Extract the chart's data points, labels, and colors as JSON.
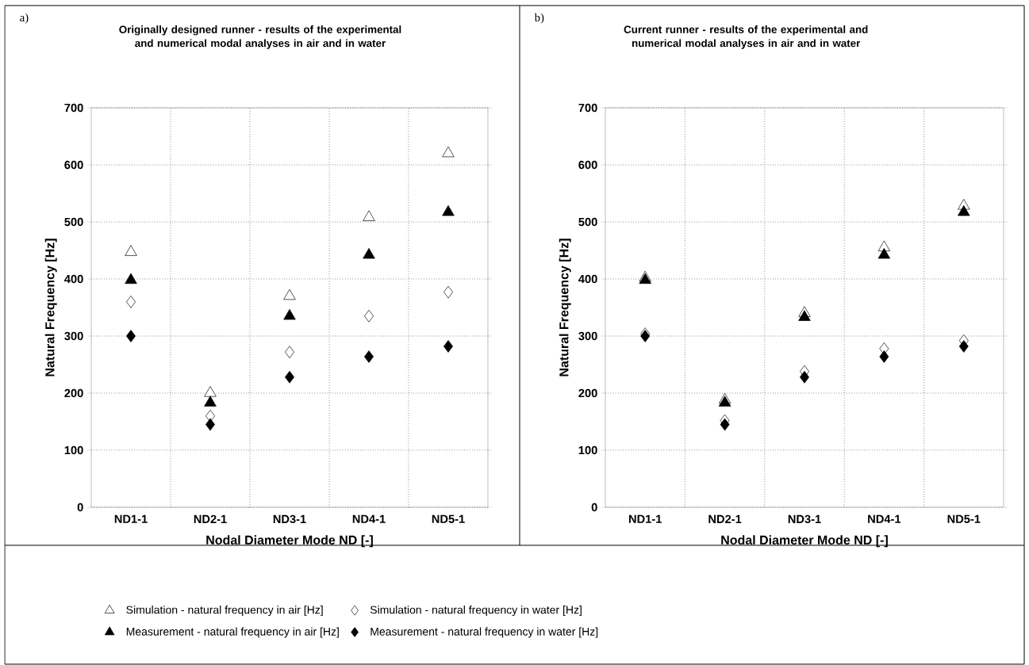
{
  "chart_data": [
    {
      "type": "scatter",
      "title": "Originally designed runner - results of the experimental and numerical modal analyses in air and in water",
      "xlabel": "Nodal Diameter Mode ND [-]",
      "ylabel": "Natural Frequency [Hz]",
      "annotations": [
        "a)"
      ],
      "categories": [
        "ND1-1",
        "ND2-1",
        "ND3-1",
        "ND4-1",
        "ND5-1"
      ],
      "series": [
        {
          "name": "Simulation - natural frequency in air [Hz]",
          "color": "#ffffff",
          "marker": "triangle",
          "values": [
            447,
            200,
            370,
            508,
            620
          ]
        },
        {
          "name": "Simulation - natural frequency in water [Hz]",
          "color": "#ffffff",
          "marker": "diamond",
          "values": [
            360,
            160,
            272,
            335,
            377
          ]
        },
        {
          "name": "Measurement - natural frequency in air [Hz]",
          "color": "#000000",
          "marker": "triangle",
          "values": [
            398,
            183,
            335,
            442,
            517
          ]
        },
        {
          "name": "Measurement - natural frequency in water [Hz]",
          "color": "#000000",
          "marker": "diamond",
          "values": [
            300,
            145,
            228,
            264,
            282
          ]
        }
      ],
      "ylim": [
        0,
        700
      ],
      "yticks": [
        0,
        100,
        200,
        300,
        400,
        500,
        600,
        700
      ],
      "grid": true,
      "legend": "bottom"
    },
    {
      "type": "scatter",
      "title": "Current runner - results of the experimental and numerical modal analyses in air and in water",
      "xlabel": "Nodal Diameter Mode ND [-]",
      "ylabel": "Natural Frequency [Hz]",
      "annotations": [
        "b)"
      ],
      "categories": [
        "ND1-1",
        "ND2-1",
        "ND3-1",
        "ND4-1",
        "ND5-1"
      ],
      "series": [
        {
          "color": "#ffffff",
          "marker": "triangle",
          "values": [
            402,
            188,
            340,
            455,
            528
          ]
        },
        {
          "color": "#ffffff",
          "marker": "diamond",
          "values": [
            304,
            152,
            238,
            278,
            292
          ]
        },
        {
          "color": "#000000",
          "marker": "triangle",
          "values": [
            398,
            183,
            333,
            442,
            517
          ]
        },
        {
          "color": "#000000",
          "marker": "diamond",
          "values": [
            300,
            145,
            228,
            264,
            282
          ]
        }
      ],
      "ylim": [
        0,
        700
      ],
      "yticks": [
        0,
        100,
        200,
        300,
        400,
        500,
        600,
        700
      ],
      "grid": true
    }
  ]
}
